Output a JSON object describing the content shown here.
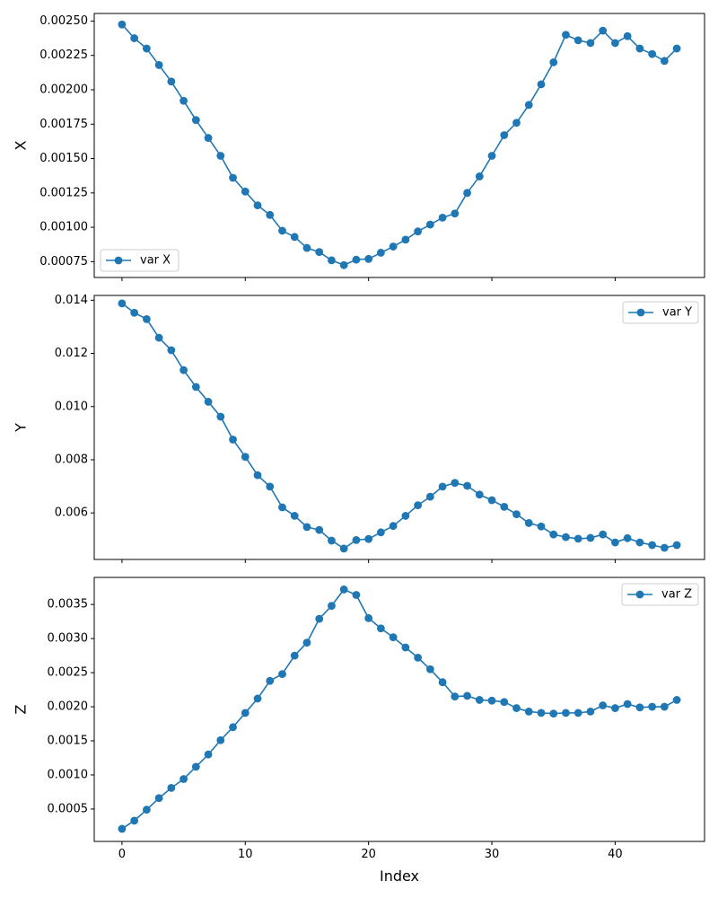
{
  "colors": {
    "series": "#1f77b4",
    "axes": "#000000",
    "legend_border": "#cccccc",
    "background": "#ffffff"
  },
  "chart_data": [
    {
      "type": "line",
      "marker": "circle",
      "ylabel": "X",
      "xlabel": "",
      "xlim": [
        -2.25,
        47.25
      ],
      "ylim": [
        0.000635,
        0.002555
      ],
      "x_ticks": [
        0,
        10,
        20,
        30,
        40
      ],
      "x_tick_labels_visible": false,
      "y_ticks": [
        0.00075,
        0.001,
        0.00125,
        0.0015,
        0.00175,
        0.002,
        0.00225,
        0.0025
      ],
      "y_tick_labels": [
        "0.00075",
        "0.00100",
        "0.00125",
        "0.00150",
        "0.00175",
        "0.00200",
        "0.00225",
        "0.00250"
      ],
      "legend_position": "lower-left",
      "grid": false,
      "series": [
        {
          "name": "var X",
          "x": [
            0,
            1,
            2,
            3,
            4,
            5,
            6,
            7,
            8,
            9,
            10,
            11,
            12,
            13,
            14,
            15,
            16,
            17,
            18,
            19,
            20,
            21,
            22,
            23,
            24,
            25,
            26,
            27,
            28,
            29,
            30,
            31,
            32,
            33,
            34,
            35,
            36,
            37,
            38,
            39,
            40,
            41,
            42,
            43,
            44,
            45
          ],
          "values": [
            0.002475,
            0.002375,
            0.0023,
            0.00218,
            0.00206,
            0.00192,
            0.00178,
            0.00165,
            0.00152,
            0.00136,
            0.00126,
            0.00116,
            0.00109,
            0.000975,
            0.00093,
            0.00085,
            0.00082,
            0.00076,
            0.000725,
            0.000765,
            0.00077,
            0.000815,
            0.00086,
            0.00091,
            0.00097,
            0.00102,
            0.00107,
            0.0011,
            0.00125,
            0.00137,
            0.00152,
            0.00167,
            0.00176,
            0.00189,
            0.00204,
            0.0022,
            0.0024,
            0.00236,
            0.00234,
            0.00243,
            0.00234,
            0.00239,
            0.0023,
            0.00226,
            0.00221,
            0.0023
          ]
        }
      ]
    },
    {
      "type": "line",
      "marker": "circle",
      "ylabel": "Y",
      "xlabel": "",
      "xlim": [
        -2.25,
        47.25
      ],
      "ylim": [
        0.00425,
        0.01418
      ],
      "x_ticks": [
        0,
        10,
        20,
        30,
        40
      ],
      "x_tick_labels_visible": false,
      "y_ticks": [
        0.006,
        0.008,
        0.01,
        0.012,
        0.014
      ],
      "y_tick_labels": [
        "0.006",
        "0.008",
        "0.010",
        "0.012",
        "0.014"
      ],
      "legend_position": "upper-right",
      "grid": false,
      "series": [
        {
          "name": "var Y",
          "x": [
            0,
            1,
            2,
            3,
            4,
            5,
            6,
            7,
            8,
            9,
            10,
            11,
            12,
            13,
            14,
            15,
            16,
            17,
            18,
            19,
            20,
            21,
            22,
            23,
            24,
            25,
            26,
            27,
            28,
            29,
            30,
            31,
            32,
            33,
            34,
            35,
            36,
            37,
            38,
            39,
            40,
            41,
            42,
            43,
            44,
            45
          ],
          "values": [
            0.01388,
            0.01353,
            0.01329,
            0.01259,
            0.01212,
            0.01137,
            0.01074,
            0.01018,
            0.00962,
            0.00876,
            0.00811,
            0.00742,
            0.00699,
            0.00621,
            0.00589,
            0.00547,
            0.00536,
            0.00496,
            0.00466,
            0.00498,
            0.00502,
            0.00527,
            0.00551,
            0.00589,
            0.00629,
            0.00661,
            0.00699,
            0.00713,
            0.00702,
            0.00669,
            0.00648,
            0.00623,
            0.00595,
            0.00562,
            0.00549,
            0.00519,
            0.00509,
            0.00503,
            0.00506,
            0.00519,
            0.00489,
            0.00505,
            0.00489,
            0.00479,
            0.00469,
            0.00479
          ]
        }
      ]
    },
    {
      "type": "line",
      "marker": "circle",
      "ylabel": "Z",
      "xlabel": "Index",
      "xlim": [
        -2.25,
        47.25
      ],
      "ylim": [
        2.5e-05,
        0.003897
      ],
      "x_ticks": [
        0,
        10,
        20,
        30,
        40
      ],
      "x_tick_labels": [
        "0",
        "10",
        "20",
        "30",
        "40"
      ],
      "x_tick_labels_visible": true,
      "y_ticks": [
        0.0005,
        0.001,
        0.0015,
        0.002,
        0.0025,
        0.003,
        0.0035
      ],
      "y_tick_labels": [
        "0.0005",
        "0.0010",
        "0.0015",
        "0.0020",
        "0.0025",
        "0.0030",
        "0.0035"
      ],
      "legend_position": "upper-right",
      "grid": false,
      "series": [
        {
          "name": "var Z",
          "x": [
            0,
            1,
            2,
            3,
            4,
            5,
            6,
            7,
            8,
            9,
            10,
            11,
            12,
            13,
            14,
            15,
            16,
            17,
            18,
            19,
            20,
            21,
            22,
            23,
            24,
            25,
            26,
            27,
            28,
            29,
            30,
            31,
            32,
            33,
            34,
            35,
            36,
            37,
            38,
            39,
            40,
            41,
            42,
            43,
            44,
            45
          ],
          "values": [
            0.00021,
            0.00033,
            0.00049,
            0.00066,
            0.00081,
            0.00094,
            0.00112,
            0.0013,
            0.00151,
            0.0017,
            0.00191,
            0.00212,
            0.00238,
            0.00248,
            0.00275,
            0.00294,
            0.00329,
            0.00348,
            0.00372,
            0.00364,
            0.0033,
            0.00315,
            0.00302,
            0.00287,
            0.00272,
            0.00255,
            0.00236,
            0.00215,
            0.00216,
            0.0021,
            0.00209,
            0.00207,
            0.00198,
            0.00193,
            0.00191,
            0.0019,
            0.00191,
            0.00191,
            0.00193,
            0.00202,
            0.00198,
            0.00204,
            0.00199,
            0.002,
            0.002,
            0.0021
          ]
        }
      ]
    }
  ]
}
